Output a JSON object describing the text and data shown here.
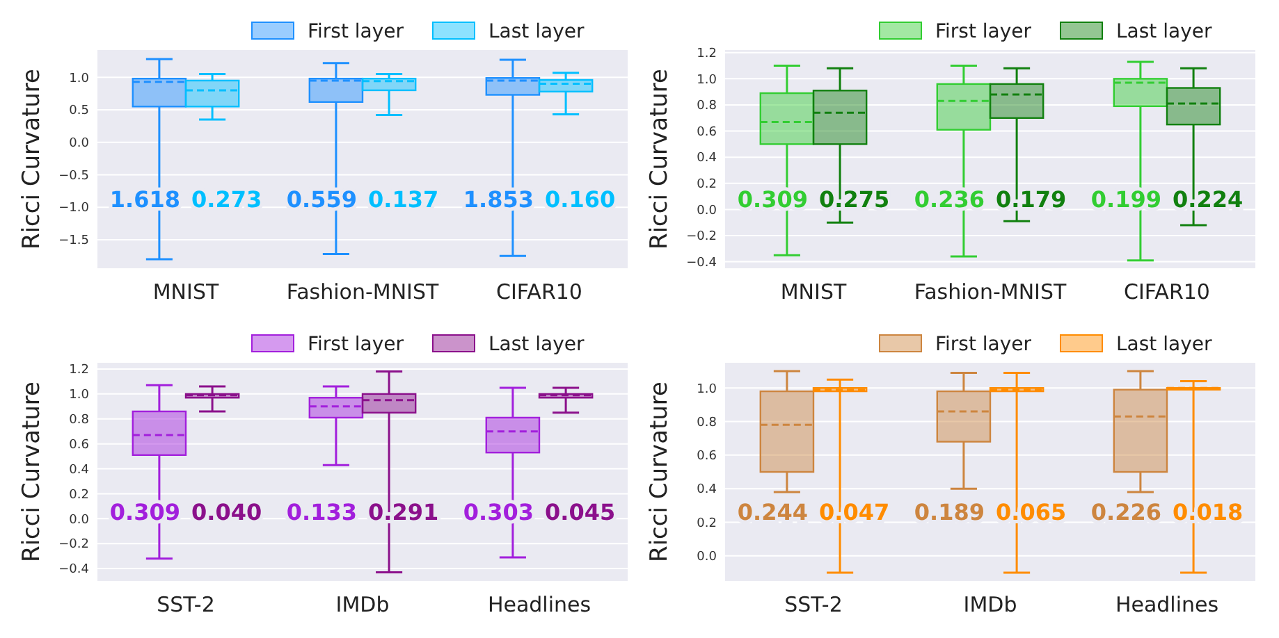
{
  "chart_data": [
    {
      "type": "box",
      "ylabel": "Ricci Curvature",
      "categories": [
        "MNIST",
        "Fashion-MNIST",
        "CIFAR10"
      ],
      "ylim": [
        -1.94,
        1.42
      ],
      "yticks": [
        {
          "value": -1.5,
          "label": "−1.5"
        },
        {
          "value": -1,
          "label": "−1.0"
        },
        {
          "value": -0.5,
          "label": "−0.5"
        },
        {
          "value": 0,
          "label": "0.0"
        },
        {
          "value": 0.5,
          "label": "0.5"
        },
        {
          "value": 1,
          "label": "1.0"
        }
      ],
      "grid": "y",
      "legend": "top right",
      "series": [
        {
          "name": "First layer",
          "color": "#1e90ff",
          "boxes": [
            {
              "low": -1.8,
              "q1": 0.55,
              "median": 0.93,
              "q3": 0.98,
              "high": 1.28
            },
            {
              "low": -1.72,
              "q1": 0.62,
              "median": 0.95,
              "q3": 0.98,
              "high": 1.22
            },
            {
              "low": -1.75,
              "q1": 0.73,
              "median": 0.95,
              "q3": 0.99,
              "high": 1.27
            }
          ]
        },
        {
          "name": "Last layer",
          "color": "#00bfff",
          "boxes": [
            {
              "low": 0.35,
              "q1": 0.55,
              "median": 0.8,
              "q3": 0.95,
              "high": 1.05
            },
            {
              "low": 0.42,
              "q1": 0.8,
              "median": 0.94,
              "q3": 0.98,
              "high": 1.05
            },
            {
              "low": 0.43,
              "q1": 0.78,
              "median": 0.9,
              "q3": 0.96,
              "high": 1.07
            }
          ]
        }
      ],
      "annotations": [
        "1.618",
        "0.273",
        "0.559",
        "0.137",
        "1.853",
        "0.160"
      ]
    },
    {
      "type": "box",
      "ylabel": "Ricci Curvature",
      "categories": [
        "MNIST",
        "Fashion-MNIST",
        "CIFAR10"
      ],
      "ylim": [
        -0.45,
        1.22
      ],
      "yticks": [
        {
          "value": -0.4,
          "label": "−0.4"
        },
        {
          "value": -0.2,
          "label": "−0.2"
        },
        {
          "value": 0,
          "label": "0.0"
        },
        0.2,
        0.4,
        0.6,
        0.8,
        {
          "value": 1,
          "label": "1.0"
        },
        1.2
      ],
      "grid": "y",
      "legend": "top right",
      "series": [
        {
          "name": "First layer",
          "color": "#32cd32",
          "boxes": [
            {
              "low": -0.35,
              "q1": 0.5,
              "median": 0.67,
              "q3": 0.89,
              "high": 1.1
            },
            {
              "low": -0.36,
              "q1": 0.61,
              "median": 0.83,
              "q3": 0.96,
              "high": 1.1
            },
            {
              "low": -0.39,
              "q1": 0.79,
              "median": 0.97,
              "q3": 1.0,
              "high": 1.13
            }
          ]
        },
        {
          "name": "Last layer",
          "color": "#11800f",
          "boxes": [
            {
              "low": -0.1,
              "q1": 0.5,
              "median": 0.74,
              "q3": 0.91,
              "high": 1.08
            },
            {
              "low": -0.09,
              "q1": 0.7,
              "median": 0.88,
              "q3": 0.96,
              "high": 1.08
            },
            {
              "low": -0.12,
              "q1": 0.65,
              "median": 0.81,
              "q3": 0.93,
              "high": 1.08
            }
          ]
        }
      ],
      "annotations": [
        "0.309",
        "0.275",
        "0.236",
        "0.179",
        "0.199",
        "0.224"
      ]
    },
    {
      "type": "box",
      "ylabel": "Ricci Curvature",
      "categories": [
        "SST-2",
        "IMDb",
        "Headlines"
      ],
      "ylim": [
        -0.5,
        1.25
      ],
      "yticks": [
        {
          "value": -0.4,
          "label": "−0.4"
        },
        {
          "value": -0.2,
          "label": "−0.2"
        },
        {
          "value": 0,
          "label": "0.0"
        },
        0.2,
        0.4,
        0.6,
        0.8,
        {
          "value": 1,
          "label": "1.0"
        },
        1.2
      ],
      "grid": "y",
      "legend": "top right",
      "series": [
        {
          "name": "First layer",
          "color": "#a21fdc",
          "boxes": [
            {
              "low": -0.32,
              "q1": 0.51,
              "median": 0.67,
              "q3": 0.86,
              "high": 1.07
            },
            {
              "low": 0.43,
              "q1": 0.81,
              "median": 0.9,
              "q3": 0.97,
              "high": 1.06
            },
            {
              "low": -0.31,
              "q1": 0.53,
              "median": 0.7,
              "q3": 0.81,
              "high": 1.05
            }
          ]
        },
        {
          "name": "Last layer",
          "color": "#8b108b",
          "boxes": [
            {
              "low": 0.86,
              "q1": 0.97,
              "median": 0.99,
              "q3": 1.0,
              "high": 1.06
            },
            {
              "low": -0.43,
              "q1": 0.85,
              "median": 0.95,
              "q3": 1.0,
              "high": 1.18
            },
            {
              "low": 0.85,
              "q1": 0.97,
              "median": 0.99,
              "q3": 1.0,
              "high": 1.05
            }
          ]
        }
      ],
      "annotations": [
        "0.309",
        "0.040",
        "0.133",
        "0.291",
        "0.303",
        "0.045"
      ]
    },
    {
      "type": "box",
      "ylabel": "Ricci Curvature",
      "categories": [
        "SST-2",
        "IMDb",
        "Headlines"
      ],
      "ylim": [
        -0.15,
        1.15
      ],
      "yticks": [
        {
          "value": 0,
          "label": "0.0"
        },
        0.2,
        0.4,
        0.6,
        0.8,
        {
          "value": 1,
          "label": "1.0"
        }
      ],
      "grid": "y",
      "legend": "top right",
      "series": [
        {
          "name": "First layer",
          "color": "#cd853f",
          "boxes": [
            {
              "low": 0.38,
              "q1": 0.5,
              "median": 0.78,
              "q3": 0.98,
              "high": 1.1
            },
            {
              "low": 0.4,
              "q1": 0.68,
              "median": 0.86,
              "q3": 0.98,
              "high": 1.09
            },
            {
              "low": 0.38,
              "q1": 0.5,
              "median": 0.83,
              "q3": 0.99,
              "high": 1.1
            }
          ]
        },
        {
          "name": "Last layer",
          "color": "#ff8c00",
          "boxes": [
            {
              "low": -0.1,
              "q1": 0.98,
              "median": 0.99,
              "q3": 1.0,
              "high": 1.05
            },
            {
              "low": -0.1,
              "q1": 0.98,
              "median": 0.99,
              "q3": 1.0,
              "high": 1.09
            },
            {
              "low": -0.1,
              "q1": 0.99,
              "median": 1.0,
              "q3": 1.0,
              "high": 1.04
            }
          ]
        }
      ],
      "annotations": [
        "0.244",
        "0.047",
        "0.189",
        "0.065",
        "0.226",
        "0.018"
      ]
    }
  ]
}
